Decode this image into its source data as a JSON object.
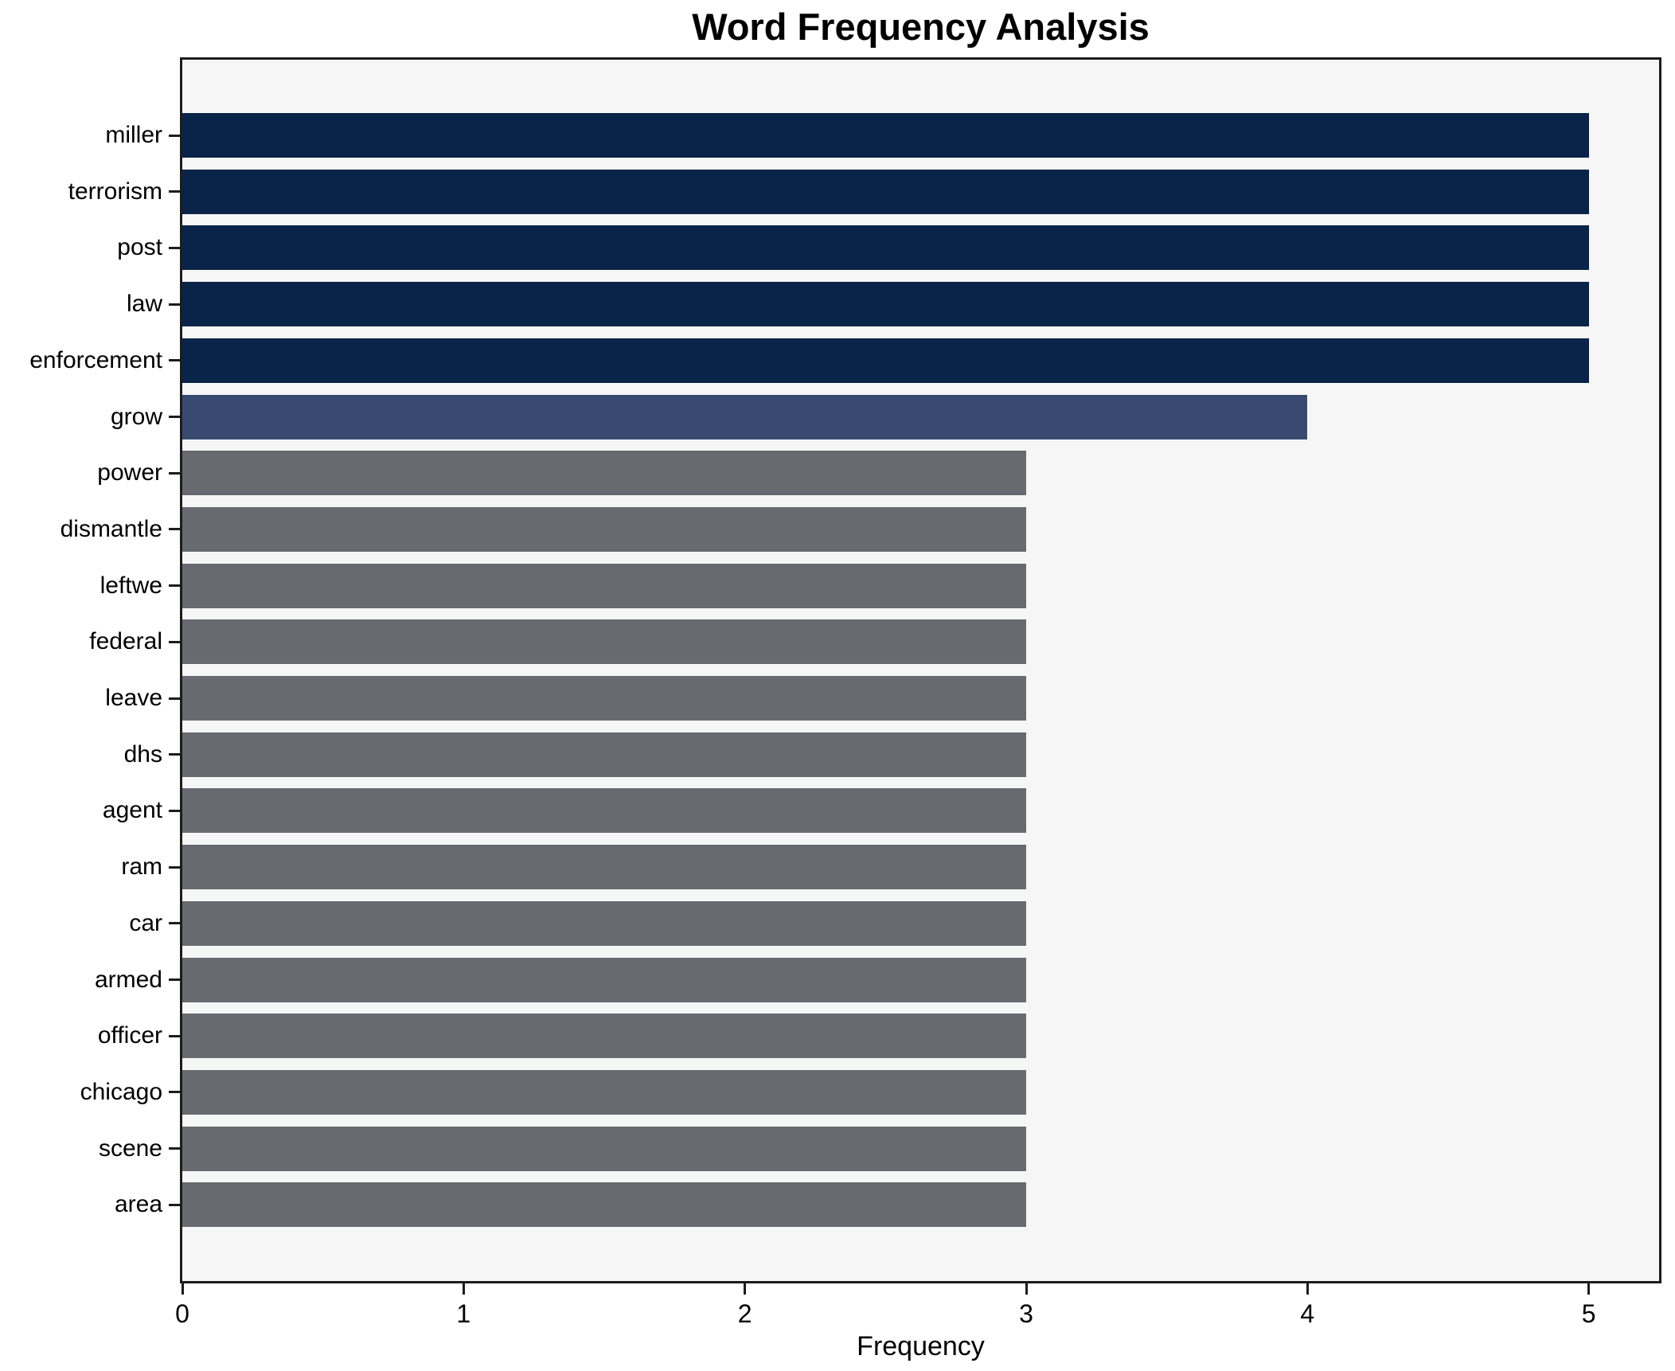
{
  "chart_data": {
    "type": "bar",
    "orientation": "horizontal",
    "title": "Word Frequency Analysis",
    "xlabel": "Frequency",
    "ylabel": "",
    "categories": [
      "miller",
      "terrorism",
      "post",
      "law",
      "enforcement",
      "grow",
      "power",
      "dismantle",
      "leftwe",
      "federal",
      "leave",
      "dhs",
      "agent",
      "ram",
      "car",
      "armed",
      "officer",
      "chicago",
      "scene",
      "area"
    ],
    "values": [
      5,
      5,
      5,
      5,
      5,
      4,
      3,
      3,
      3,
      3,
      3,
      3,
      3,
      3,
      3,
      3,
      3,
      3,
      3,
      3
    ],
    "bar_colors": [
      "#0a2348",
      "#0a2348",
      "#0a2348",
      "#0a2348",
      "#0a2348",
      "#394a71",
      "#676a70",
      "#676a70",
      "#676a70",
      "#676a70",
      "#676a70",
      "#676a70",
      "#676a70",
      "#676a70",
      "#676a70",
      "#676a70",
      "#676a70",
      "#676a70",
      "#676a70",
      "#676a70"
    ],
    "x_ticks": [
      "0",
      "1",
      "2",
      "3",
      "4",
      "5"
    ],
    "x_tick_values": [
      0,
      1,
      2,
      3,
      4,
      5
    ],
    "xlim": [
      0,
      5.25
    ],
    "grid": false,
    "legend": false,
    "colors": {
      "value_5_bar": "#0a2348",
      "value_4_bar": "#394a71",
      "value_3_bar": "#676a70",
      "plot_background": "#f6f6f6",
      "figure_background": "#ffffff",
      "axis_line": "#1c1c1c",
      "text": "#000000"
    }
  }
}
